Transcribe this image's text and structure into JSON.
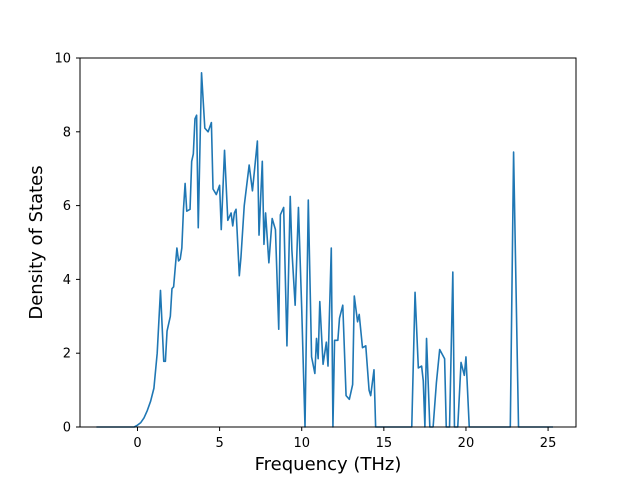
{
  "chart_data": {
    "type": "line",
    "xlabel": "Frequency (THz)",
    "ylabel": "Density of States",
    "xlim": [
      -3.5,
      26.7
    ],
    "ylim": [
      0,
      10
    ],
    "xticks": [
      0,
      5,
      10,
      15,
      20,
      25
    ],
    "yticks": [
      0,
      2,
      4,
      6,
      8,
      10
    ],
    "grid": false,
    "line_color": "#1f77b4",
    "series": [
      {
        "x": [
          -2.5,
          -0.2,
          0.0,
          0.2,
          0.4,
          0.6,
          0.8,
          1.0,
          1.2,
          1.4,
          1.6,
          1.7,
          1.8,
          2.0,
          2.1,
          2.2,
          2.4,
          2.5,
          2.6,
          2.7,
          2.8,
          2.9,
          3.0,
          3.2,
          3.3,
          3.4,
          3.5,
          3.6,
          3.7,
          3.9,
          4.1,
          4.3,
          4.5,
          4.6,
          4.8,
          5.0,
          5.1,
          5.3,
          5.5,
          5.7,
          5.8,
          5.9,
          6.0,
          6.2,
          6.3,
          6.5,
          6.8,
          7.0,
          7.3,
          7.4,
          7.6,
          7.7,
          7.8,
          8.0,
          8.2,
          8.4,
          8.6,
          8.7,
          8.9,
          9.1,
          9.3,
          9.4,
          9.6,
          9.8,
          10.0,
          10.2,
          10.4,
          10.6,
          10.8,
          10.9,
          11.0,
          11.1,
          11.3,
          11.5,
          11.6,
          11.8,
          11.9,
          12.0,
          12.2,
          12.3,
          12.5,
          12.7,
          12.9,
          13.1,
          13.2,
          13.4,
          13.5,
          13.7,
          13.9,
          14.1,
          14.2,
          14.4,
          14.5,
          14.7,
          14.9,
          16.7,
          16.9,
          17.1,
          17.3,
          17.4,
          17.5,
          17.6,
          17.8,
          18.0,
          18.2,
          18.4,
          18.7,
          18.8,
          19.0,
          19.2,
          19.3,
          19.5,
          19.7,
          19.9,
          20.0,
          20.2,
          20.5,
          20.6,
          22.7,
          22.9,
          23.2,
          23.4,
          25.3
        ],
        "values": [
          0.0,
          0.0,
          0.05,
          0.12,
          0.25,
          0.45,
          0.7,
          1.05,
          2.0,
          3.7,
          1.78,
          1.78,
          2.6,
          3.0,
          3.75,
          3.8,
          4.85,
          4.5,
          4.55,
          4.85,
          5.9,
          6.6,
          5.85,
          5.9,
          7.2,
          7.4,
          8.35,
          8.45,
          5.4,
          9.6,
          8.1,
          8.0,
          8.25,
          6.45,
          6.3,
          6.55,
          5.35,
          7.5,
          5.6,
          5.8,
          5.45,
          5.8,
          5.9,
          4.1,
          4.6,
          6.0,
          7.1,
          6.4,
          7.75,
          5.2,
          7.2,
          4.95,
          5.8,
          4.45,
          5.65,
          5.35,
          2.65,
          5.75,
          5.95,
          2.2,
          6.25,
          4.8,
          3.3,
          5.95,
          3.2,
          0.0,
          6.15,
          1.9,
          1.45,
          2.4,
          1.85,
          3.4,
          1.7,
          2.3,
          1.65,
          4.85,
          0.0,
          2.35,
          2.35,
          2.95,
          3.3,
          0.85,
          0.75,
          1.15,
          3.55,
          2.85,
          3.05,
          2.15,
          2.2,
          1.0,
          0.85,
          1.55,
          0.0,
          0.0,
          0.0,
          0.0,
          3.65,
          1.6,
          1.65,
          1.25,
          0.0,
          2.4,
          0.0,
          0.0,
          1.2,
          2.1,
          1.85,
          0.0,
          0.0,
          4.2,
          0.0,
          0.0,
          1.75,
          1.4,
          1.9,
          0.0,
          0.0,
          0.0,
          0.0,
          7.45,
          0.0,
          0.0,
          0.0
        ]
      }
    ]
  }
}
